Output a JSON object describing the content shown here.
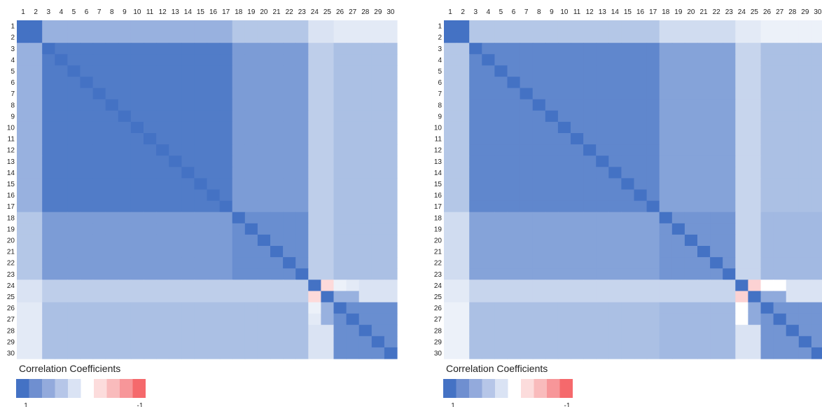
{
  "chart_data": [
    {
      "type": "heatmap",
      "labels": [
        "1",
        "2",
        "3",
        "4",
        "5",
        "6",
        "7",
        "8",
        "9",
        "10",
        "11",
        "12",
        "13",
        "14",
        "15",
        "16",
        "17",
        "18",
        "19",
        "20",
        "21",
        "22",
        "23",
        "24",
        "25",
        "26",
        "27",
        "28",
        "29",
        "30"
      ],
      "groups": [
        [
          1,
          2
        ],
        [
          3,
          17
        ],
        [
          18,
          23
        ],
        [
          24,
          25
        ],
        [
          26,
          30
        ]
      ],
      "block_values": [
        [
          1.0,
          0.55,
          0.4,
          0.2,
          0.15
        ],
        [
          0.55,
          0.93,
          0.7,
          0.35,
          0.45
        ],
        [
          0.4,
          0.7,
          0.8,
          0.35,
          0.45
        ],
        [
          0.2,
          0.35,
          0.35,
          0.1,
          0.2
        ],
        [
          0.15,
          0.45,
          0.45,
          0.2,
          0.8
        ]
      ],
      "diagonal": 1.0,
      "overrides": [
        {
          "i": 24,
          "j": 25,
          "v": -0.25
        },
        {
          "i": 24,
          "j": 26,
          "v": 0.1
        },
        {
          "i": 24,
          "j": 27,
          "v": 0.15
        },
        {
          "i": 25,
          "j": 26,
          "v": 0.55
        },
        {
          "i": 25,
          "j": 27,
          "v": 0.55
        }
      ],
      "legend": {
        "title": "Correlation  Coefficients",
        "swatch_colors": [
          "#4472c4",
          "#6f8fd0",
          "#93aadc",
          "#b6c6e8",
          "#dae3f4",
          "#ffffff",
          "#fcdcdc",
          "#f9bbbc",
          "#f79699",
          "#f5696c"
        ],
        "min_label": "1",
        "max_label": "-1"
      },
      "scale_colors": {
        "positive": "#4472c4",
        "neutral": "#ffffff",
        "negative": "#f5696c"
      }
    },
    {
      "type": "heatmap",
      "labels": [
        "1",
        "2",
        "3",
        "4",
        "5",
        "6",
        "7",
        "8",
        "9",
        "10",
        "11",
        "12",
        "13",
        "14",
        "15",
        "16",
        "17",
        "18",
        "19",
        "20",
        "21",
        "22",
        "23",
        "24",
        "25",
        "26",
        "27",
        "28",
        "29",
        "30"
      ],
      "groups": [
        [
          1,
          2
        ],
        [
          3,
          17
        ],
        [
          18,
          23
        ],
        [
          24,
          25
        ],
        [
          26,
          30
        ]
      ],
      "block_values": [
        [
          1.0,
          0.4,
          0.25,
          0.15,
          0.1
        ],
        [
          0.4,
          0.85,
          0.65,
          0.3,
          0.45
        ],
        [
          0.25,
          0.65,
          0.75,
          0.3,
          0.5
        ],
        [
          0.15,
          0.3,
          0.3,
          0.1,
          0.2
        ],
        [
          0.1,
          0.45,
          0.5,
          0.2,
          0.75
        ]
      ],
      "diagonal": 1.0,
      "overrides": [
        {
          "i": 24,
          "j": 25,
          "v": -0.3
        },
        {
          "i": 24,
          "j": 26,
          "v": 0.0
        },
        {
          "i": 24,
          "j": 27,
          "v": 0.0
        },
        {
          "i": 25,
          "j": 26,
          "v": 0.6
        },
        {
          "i": 25,
          "j": 27,
          "v": 0.6
        }
      ],
      "legend": {
        "title": "Correlation  Coefficients",
        "swatch_colors": [
          "#4472c4",
          "#6f8fd0",
          "#93aadc",
          "#b6c6e8",
          "#dae3f4",
          "#ffffff",
          "#fcdcdc",
          "#f9bbbc",
          "#f79699",
          "#f5696c"
        ],
        "min_label": "1",
        "max_label": "-1"
      },
      "scale_colors": {
        "positive": "#4472c4",
        "neutral": "#ffffff",
        "negative": "#f5696c"
      }
    }
  ]
}
